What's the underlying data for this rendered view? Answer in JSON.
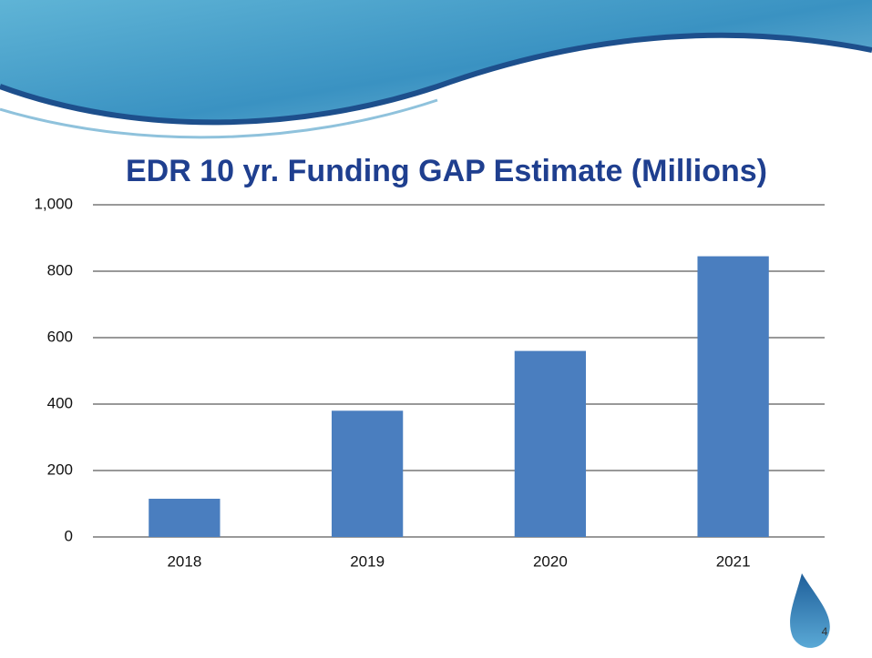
{
  "chart_data": {
    "type": "bar",
    "title": "EDR 10 yr. Funding GAP Estimate (Millions)",
    "categories": [
      "2018",
      "2019",
      "2020",
      "2021"
    ],
    "values": [
      115,
      380,
      560,
      845
    ],
    "color": "#4a7ebf",
    "ylim": [
      0,
      1000
    ],
    "yticks": [
      0,
      200,
      400,
      600,
      800,
      {
        "value": 1000,
        "label": "1,000"
      }
    ],
    "grid": true
  },
  "slide": {
    "number": "4"
  }
}
